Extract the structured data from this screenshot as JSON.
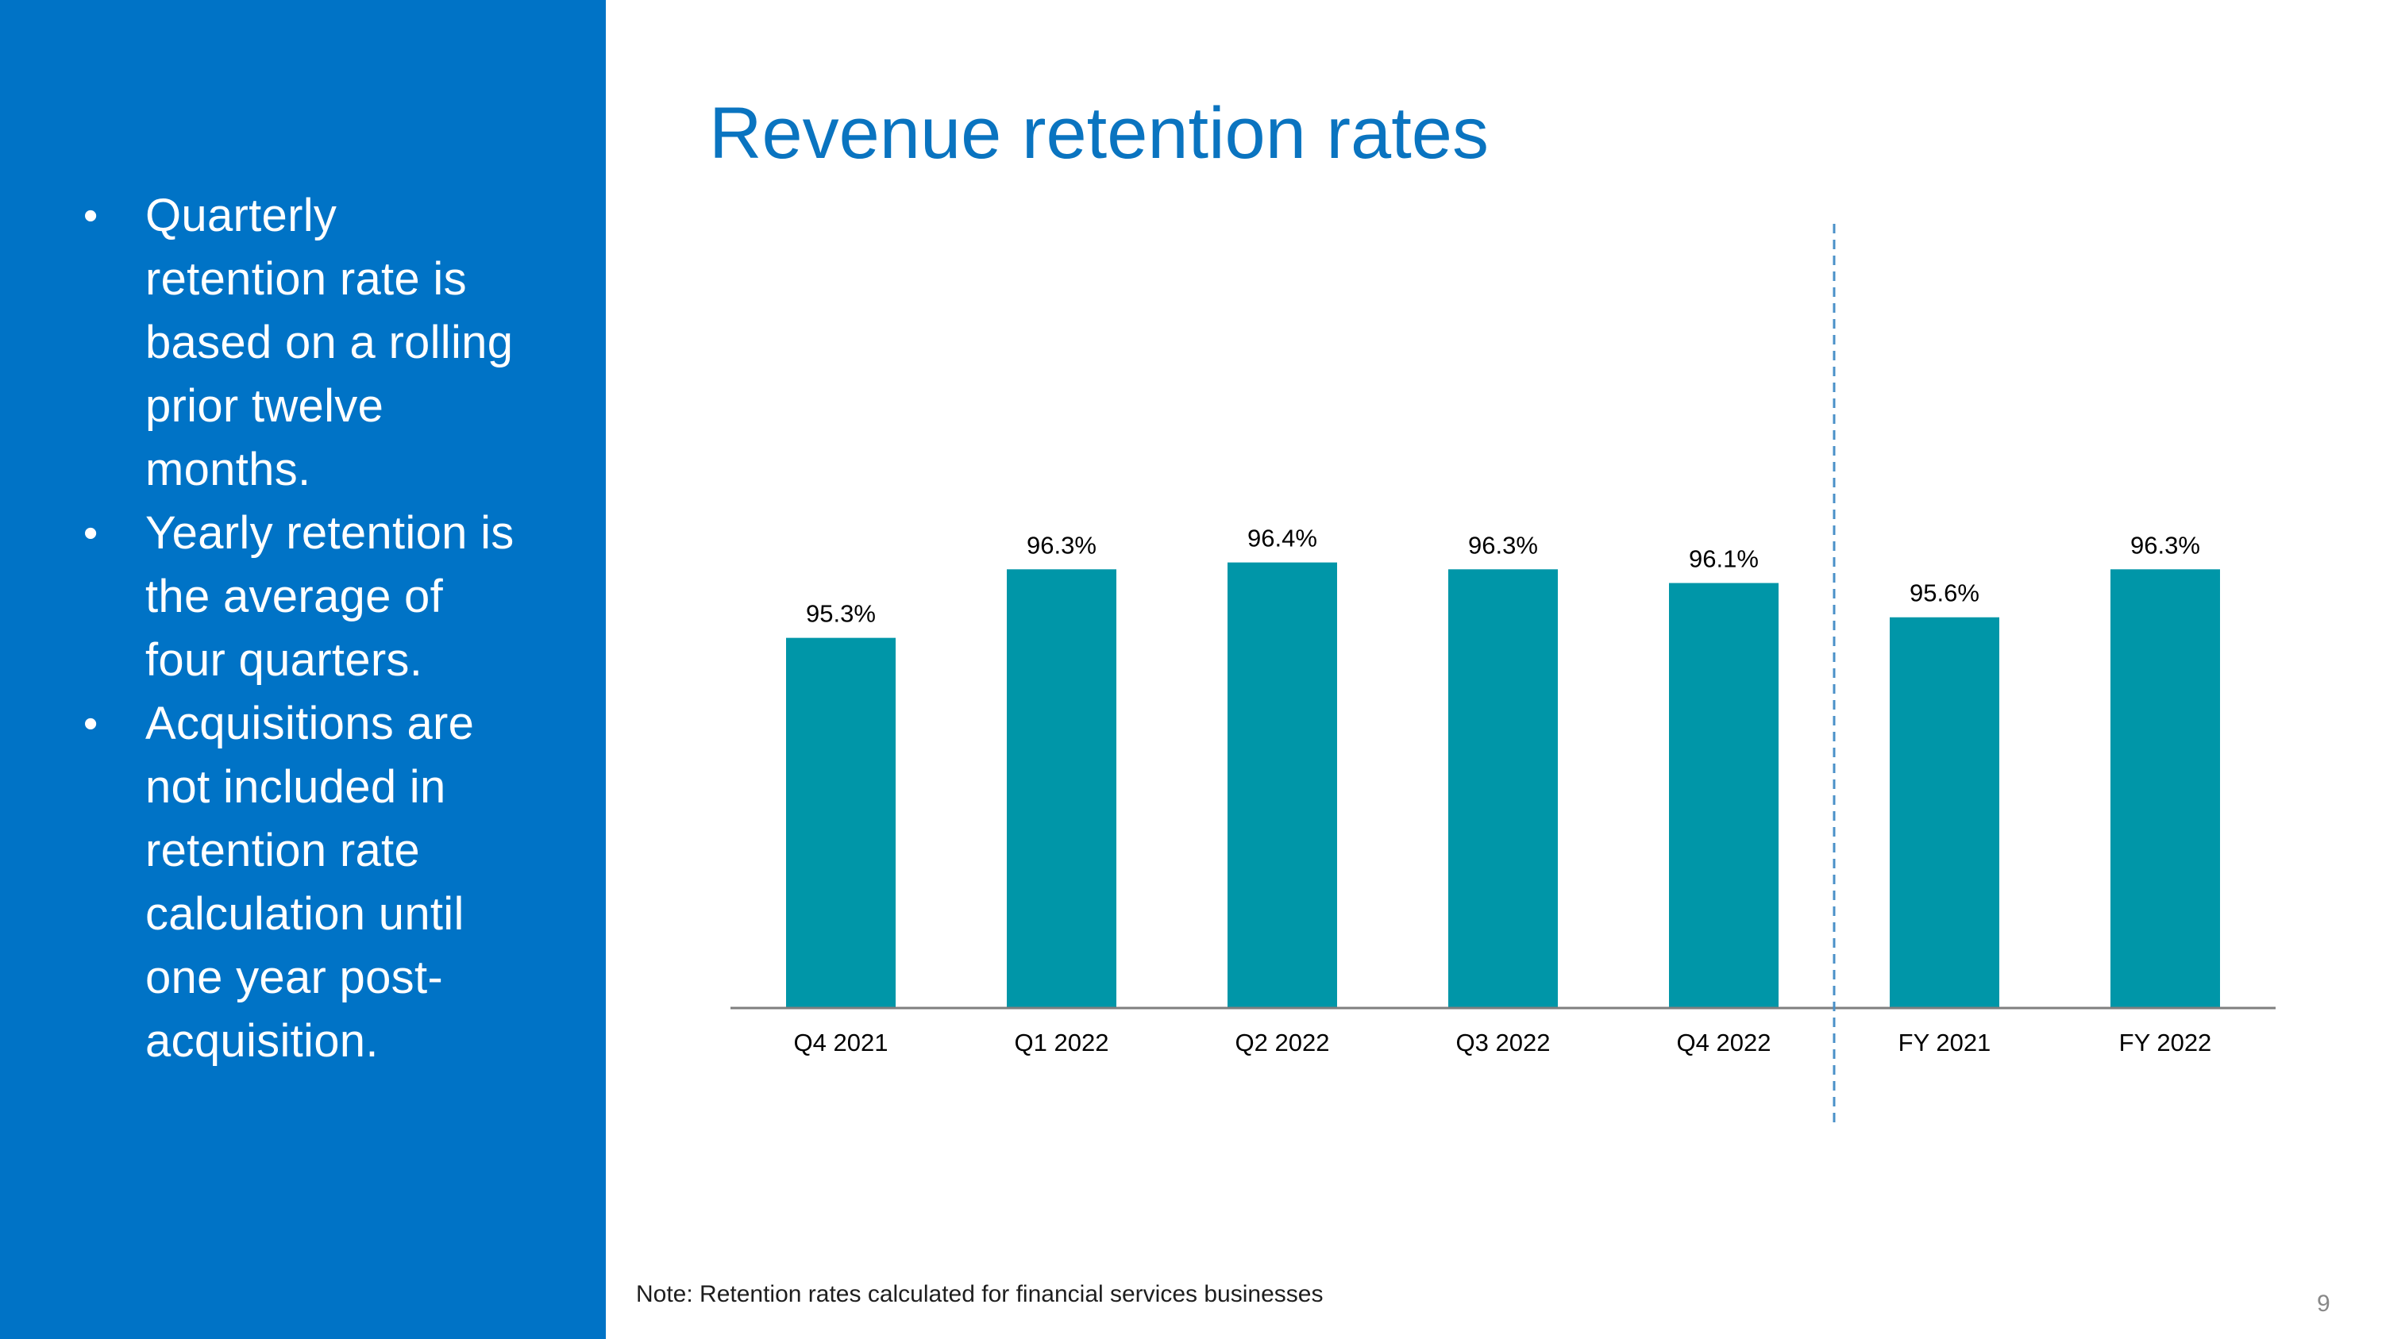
{
  "slide": {
    "title": "Revenue retention rates",
    "note": "Note: Retention rates calculated for financial services businesses",
    "page_number": "9"
  },
  "sidebar": {
    "bullet_marker": "•",
    "bullets": [
      "Quarterly retention rate is based on a rolling prior twelve months.",
      "Yearly retention is the average of four quarters.",
      "Acquisitions are not included in retention rate calculation until one year post-acquisition."
    ]
  },
  "colors": {
    "sidebar_bg": "#0073c6",
    "title": "#0a74c0",
    "bar": "#0096a8",
    "axis": "#7f7f7f",
    "divider": "#4a90c8"
  },
  "chart_data": {
    "type": "bar",
    "title": "",
    "xlabel": "",
    "ylabel": "",
    "categories": [
      "Q4 2021",
      "Q1 2022",
      "Q2 2022",
      "Q3 2022",
      "Q4 2022",
      "FY 2021",
      "FY 2022"
    ],
    "values": [
      95.3,
      96.3,
      96.4,
      96.3,
      96.1,
      95.6,
      96.3
    ],
    "labels": [
      "95.3%",
      "96.3%",
      "96.4%",
      "96.3%",
      "96.1%",
      "95.6%",
      "96.3%"
    ],
    "ylim": [
      89.9,
      96.5
    ],
    "grid": false,
    "legend": "none",
    "divider_after_category": "Q4 2022"
  }
}
